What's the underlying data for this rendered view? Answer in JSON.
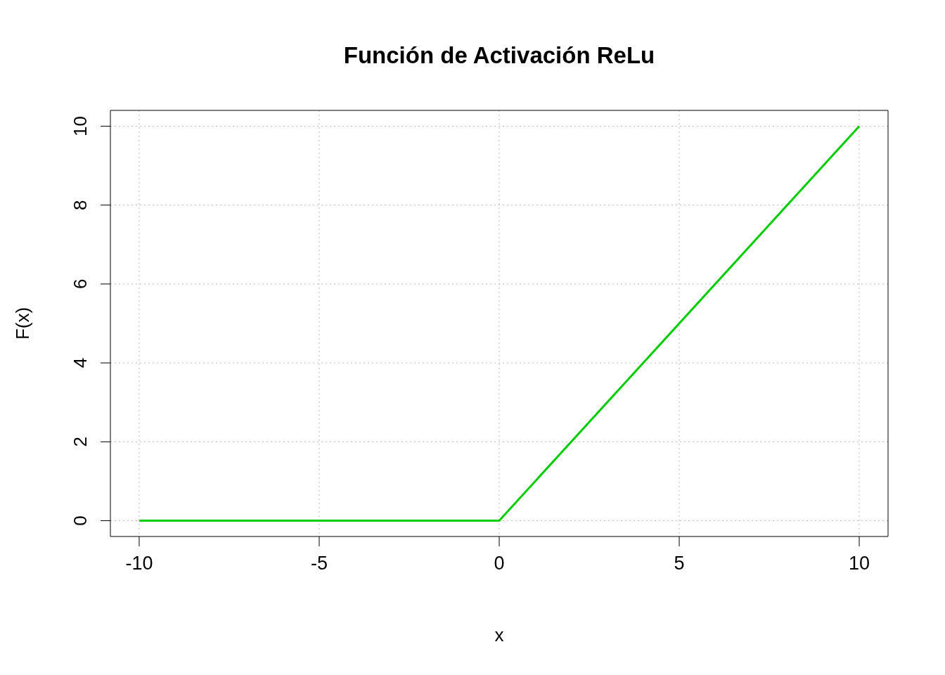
{
  "chart_data": {
    "type": "line",
    "title": "Función de Activación ReLu",
    "xlabel": "x",
    "ylabel": "F(x)",
    "x": [
      -10,
      0,
      10
    ],
    "series": [
      {
        "color": "#00cd00",
        "values": [
          0,
          0,
          10
        ]
      }
    ],
    "xlim": [
      -10.8,
      10.8
    ],
    "ylim": [
      -0.4,
      10.4
    ],
    "xticks": [
      -10,
      -5,
      0,
      5,
      10
    ],
    "yticks": [
      0,
      2,
      4,
      6,
      8,
      10
    ],
    "grid": true,
    "legend": false,
    "marker": "none",
    "line_style": "solid"
  }
}
